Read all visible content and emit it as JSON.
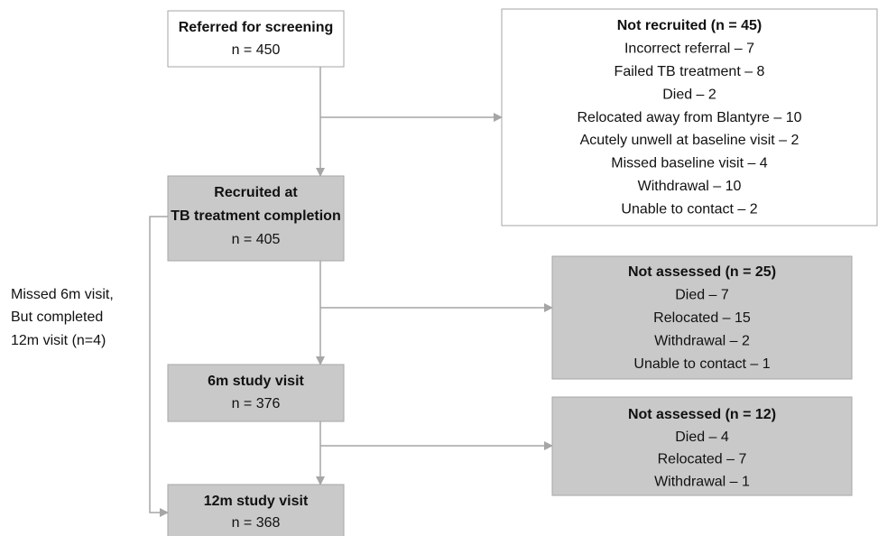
{
  "nodes": [
    {
      "heading": [
        "Referred for screening"
      ],
      "items": [
        "n = 450"
      ]
    },
    {
      "heading": [
        "Not recruited (n = 45)"
      ],
      "items": [
        "Incorrect referral – 7",
        "Failed TB treatment – 8",
        "Died – 2",
        "Relocated away from Blantyre – 10",
        "Acutely unwell at baseline visit – 2",
        "Missed baseline visit – 4",
        "Withdrawal – 10",
        "Unable to contact – 2"
      ]
    },
    {
      "heading": [
        "Recruited at",
        "TB treatment completion"
      ],
      "items": [
        "n = 405"
      ]
    },
    {
      "heading": [
        "Not assessed (n = 25)"
      ],
      "items": [
        "Died – 7",
        "Relocated – 15",
        "Withdrawal – 2",
        "Unable to contact – 1"
      ]
    },
    {
      "heading": [
        "6m study visit"
      ],
      "items": [
        "n = 376"
      ]
    },
    {
      "heading": [
        "Not assessed (n = 12)"
      ],
      "items": [
        "Died – 4",
        "Relocated – 7",
        "Withdrawal – 1"
      ]
    },
    {
      "heading": [
        "12m study visit"
      ],
      "items": [
        "n = 368"
      ]
    }
  ],
  "side_note": [
    "Missed 6m visit,",
    "But completed",
    "12m visit (n=4)"
  ]
}
